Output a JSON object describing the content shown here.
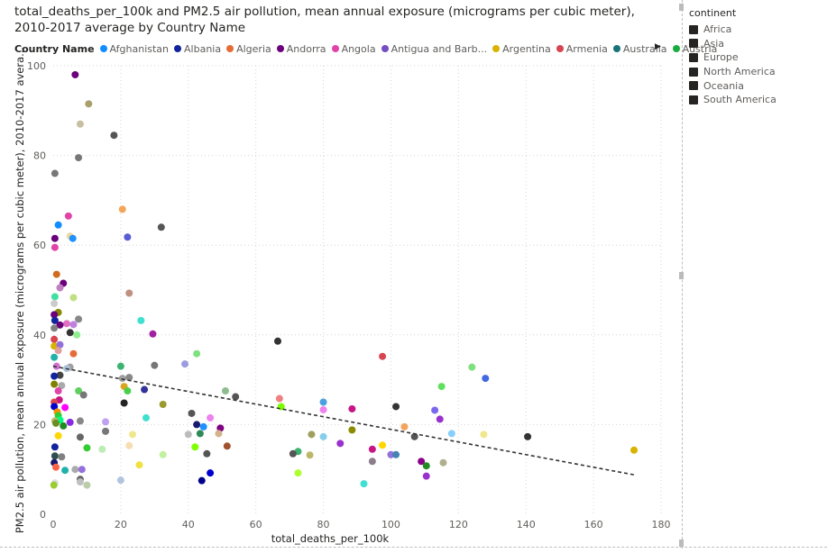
{
  "title": "total_deaths_per_100k and PM2.5 air pollution, mean annual exposure (micrograms per cubic meter), 2010-2017 average by Country Name",
  "legend": {
    "label": "Country Name",
    "items": [
      {
        "name": "Afghanistan",
        "color": "#118dff"
      },
      {
        "name": "Albania",
        "color": "#12239e"
      },
      {
        "name": "Algeria",
        "color": "#e66c37"
      },
      {
        "name": "Andorra",
        "color": "#6b007b"
      },
      {
        "name": "Angola",
        "color": "#e044a7"
      },
      {
        "name": "Antigua and Barb...",
        "color": "#744ec2"
      },
      {
        "name": "Argentina",
        "color": "#d9b300"
      },
      {
        "name": "Armenia",
        "color": "#d64550"
      },
      {
        "name": "Australia",
        "color": "#197278"
      },
      {
        "name": "Austria",
        "color": "#1aab40"
      }
    ],
    "next_icon": "triangle-right-icon"
  },
  "slicer": {
    "title": "continent",
    "items": [
      "Africa",
      "Asia",
      "Europe",
      "North America",
      "Oceania",
      "South America"
    ]
  },
  "chart_data": {
    "type": "scatter",
    "title": "total_deaths_per_100k and PM2.5 air pollution, mean annual exposure (micrograms per cubic meter), 2010-2017 average by Country Name",
    "xlabel": "total_deaths_per_100k",
    "ylabel": "PM2.5 air pollution, mean annual exposure (micrograms per cubic meter), 2010-2017 avera...",
    "xlim": [
      0,
      180
    ],
    "ylim": [
      0,
      100
    ],
    "xticks": [
      0,
      20,
      40,
      60,
      80,
      100,
      120,
      140,
      160,
      180
    ],
    "yticks": [
      0,
      20,
      40,
      60,
      80,
      100
    ],
    "grid": true,
    "trendline": {
      "x": [
        0,
        172
      ],
      "y": [
        33,
        8.8
      ],
      "style": "dashed"
    },
    "points": [
      {
        "x": 6.5,
        "y": 98,
        "c": "#6b007b"
      },
      {
        "x": 10.5,
        "y": 91.5,
        "c": "#a89f6a"
      },
      {
        "x": 8,
        "y": 87,
        "c": "#c8bfa0"
      },
      {
        "x": 18,
        "y": 84.5,
        "c": "#555555"
      },
      {
        "x": 7.5,
        "y": 79.5,
        "c": "#777777"
      },
      {
        "x": 0.5,
        "y": 76,
        "c": "#777777"
      },
      {
        "x": 20.5,
        "y": 68,
        "c": "#f2a65a"
      },
      {
        "x": 4.5,
        "y": 66.5,
        "c": "#e044a7"
      },
      {
        "x": 1.5,
        "y": 64.5,
        "c": "#118dff"
      },
      {
        "x": 32,
        "y": 64,
        "c": "#555555"
      },
      {
        "x": 22,
        "y": 61.8,
        "c": "#5b5bd6"
      },
      {
        "x": 5,
        "y": 62,
        "c": "#e8d9a0"
      },
      {
        "x": 5.8,
        "y": 61.5,
        "c": "#1e90ff"
      },
      {
        "x": 0.5,
        "y": 61.5,
        "c": "#6b007b"
      },
      {
        "x": 0.5,
        "y": 59.5,
        "c": "#e044a7"
      },
      {
        "x": 1,
        "y": 53.5,
        "c": "#d2691e"
      },
      {
        "x": 3,
        "y": 51.5,
        "c": "#6b007b"
      },
      {
        "x": 2,
        "y": 50.5,
        "c": "#c080c0"
      },
      {
        "x": 22.5,
        "y": 49.3,
        "c": "#c09080"
      },
      {
        "x": 0.5,
        "y": 48.5,
        "c": "#40e0a0"
      },
      {
        "x": 6,
        "y": 48.3,
        "c": "#c0e080"
      },
      {
        "x": 0.3,
        "y": 47,
        "c": "#cccccc"
      },
      {
        "x": 1.5,
        "y": 45,
        "c": "#888800"
      },
      {
        "x": 0.3,
        "y": 44.5,
        "c": "#6b007b"
      },
      {
        "x": 7.5,
        "y": 43.5,
        "c": "#888888"
      },
      {
        "x": 0.5,
        "y": 43.2,
        "c": "#12239e"
      },
      {
        "x": 26,
        "y": 43.2,
        "c": "#40e0d0"
      },
      {
        "x": 4,
        "y": 42.5,
        "c": "#e070c0"
      },
      {
        "x": 6,
        "y": 42.3,
        "c": "#c080e0"
      },
      {
        "x": 2,
        "y": 42.2,
        "c": "#6b007b"
      },
      {
        "x": 0.3,
        "y": 41.5,
        "c": "#808080"
      },
      {
        "x": 5,
        "y": 40.5,
        "c": "#333333"
      },
      {
        "x": 29.5,
        "y": 40.2,
        "c": "#a020a0"
      },
      {
        "x": 7,
        "y": 40,
        "c": "#90ee90"
      },
      {
        "x": 66.5,
        "y": 38.6,
        "c": "#333333"
      },
      {
        "x": 0.3,
        "y": 39,
        "c": "#d64550"
      },
      {
        "x": 0.3,
        "y": 37.5,
        "c": "#d9b300"
      },
      {
        "x": 2,
        "y": 37.8,
        "c": "#9370db"
      },
      {
        "x": 1.5,
        "y": 36.5,
        "c": "#e0a0a0"
      },
      {
        "x": 6,
        "y": 35.8,
        "c": "#e66c37"
      },
      {
        "x": 42.5,
        "y": 35.8,
        "c": "#7ee07e"
      },
      {
        "x": 97.5,
        "y": 35.2,
        "c": "#d64550"
      },
      {
        "x": 0.3,
        "y": 35,
        "c": "#20b2aa"
      },
      {
        "x": 39,
        "y": 33.5,
        "c": "#9b9be0"
      },
      {
        "x": 20,
        "y": 33,
        "c": "#3cb371"
      },
      {
        "x": 30,
        "y": 33.2,
        "c": "#777777"
      },
      {
        "x": 1,
        "y": 33,
        "c": "#d070d0"
      },
      {
        "x": 5,
        "y": 32.8,
        "c": "#a0a0a0"
      },
      {
        "x": 124,
        "y": 32.8,
        "c": "#7ee07e"
      },
      {
        "x": 4,
        "y": 32.5,
        "c": "#b0c4de"
      },
      {
        "x": 2,
        "y": 31,
        "c": "#444444"
      },
      {
        "x": 22.5,
        "y": 30.5,
        "c": "#888888"
      },
      {
        "x": 20.5,
        "y": 30.3,
        "c": "#a0a0a0"
      },
      {
        "x": 0.3,
        "y": 30.8,
        "c": "#12239e"
      },
      {
        "x": 128,
        "y": 30.3,
        "c": "#4169e1"
      },
      {
        "x": 115,
        "y": 28.5,
        "c": "#5fe05f"
      },
      {
        "x": 0.3,
        "y": 29,
        "c": "#808000"
      },
      {
        "x": 2.5,
        "y": 28.7,
        "c": "#aaaaaa"
      },
      {
        "x": 21,
        "y": 28.5,
        "c": "#daa520"
      },
      {
        "x": 27,
        "y": 27.8,
        "c": "#333399"
      },
      {
        "x": 1.5,
        "y": 27.5,
        "c": "#e044a7"
      },
      {
        "x": 7.5,
        "y": 27.5,
        "c": "#5fcf5f"
      },
      {
        "x": 51,
        "y": 27.5,
        "c": "#8fbc8f"
      },
      {
        "x": 22,
        "y": 27.5,
        "c": "#4ad04a"
      },
      {
        "x": 9,
        "y": 26.6,
        "c": "#777777"
      },
      {
        "x": 54,
        "y": 26.2,
        "c": "#555555"
      },
      {
        "x": 67,
        "y": 25.8,
        "c": "#f08080"
      },
      {
        "x": 80,
        "y": 25,
        "c": "#4aa0e0"
      },
      {
        "x": 1.8,
        "y": 25.5,
        "c": "#c71585"
      },
      {
        "x": 0.3,
        "y": 25,
        "c": "#d64550"
      },
      {
        "x": 21,
        "y": 24.8,
        "c": "#222222"
      },
      {
        "x": 32.5,
        "y": 24.5,
        "c": "#9a9a30"
      },
      {
        "x": 0.3,
        "y": 24,
        "c": "#0000cd"
      },
      {
        "x": 3.5,
        "y": 23.8,
        "c": "#ff00ff"
      },
      {
        "x": 67.5,
        "y": 24,
        "c": "#7cfc00"
      },
      {
        "x": 101.5,
        "y": 24,
        "c": "#333333"
      },
      {
        "x": 88.5,
        "y": 23.5,
        "c": "#c71585"
      },
      {
        "x": 113,
        "y": 23.2,
        "c": "#7b68ee"
      },
      {
        "x": 80,
        "y": 23.3,
        "c": "#ee82ee"
      },
      {
        "x": 1.2,
        "y": 22.8,
        "c": "#ff8c00"
      },
      {
        "x": 1.5,
        "y": 22,
        "c": "#32cd32"
      },
      {
        "x": 41,
        "y": 22.5,
        "c": "#555555"
      },
      {
        "x": 46.5,
        "y": 21.5,
        "c": "#ee82ee"
      },
      {
        "x": 27.5,
        "y": 21.5,
        "c": "#40e0d0"
      },
      {
        "x": 114.5,
        "y": 21.2,
        "c": "#9932cc"
      },
      {
        "x": 2,
        "y": 21,
        "c": "#00ff7f"
      },
      {
        "x": 0.5,
        "y": 20.8,
        "c": "#bdb76b"
      },
      {
        "x": 8,
        "y": 20.8,
        "c": "#888888"
      },
      {
        "x": 15.5,
        "y": 20.6,
        "c": "#c0a0f0"
      },
      {
        "x": 5,
        "y": 20.5,
        "c": "#8a2be2"
      },
      {
        "x": 0.8,
        "y": 20.3,
        "c": "#6b8e23"
      },
      {
        "x": 3,
        "y": 19.7,
        "c": "#228b22"
      },
      {
        "x": 42.5,
        "y": 20,
        "c": "#191970"
      },
      {
        "x": 44.5,
        "y": 19.5,
        "c": "#1e90ff"
      },
      {
        "x": 49.5,
        "y": 19.2,
        "c": "#800080"
      },
      {
        "x": 104,
        "y": 19.5,
        "c": "#f4a460"
      },
      {
        "x": 88.5,
        "y": 18.8,
        "c": "#8b8b00"
      },
      {
        "x": 15.5,
        "y": 18.5,
        "c": "#777777"
      },
      {
        "x": 23.5,
        "y": 17.8,
        "c": "#f0e68c"
      },
      {
        "x": 40,
        "y": 17.8,
        "c": "#bbbbbb"
      },
      {
        "x": 43.5,
        "y": 18,
        "c": "#2e8b57"
      },
      {
        "x": 49,
        "y": 18,
        "c": "#d2b48c"
      },
      {
        "x": 76.5,
        "y": 17.8,
        "c": "#9f9f5f"
      },
      {
        "x": 80,
        "y": 17.3,
        "c": "#87ceeb"
      },
      {
        "x": 118,
        "y": 18,
        "c": "#87cefa"
      },
      {
        "x": 127.5,
        "y": 17.8,
        "c": "#f0e68c"
      },
      {
        "x": 140.5,
        "y": 17.3,
        "c": "#333333"
      },
      {
        "x": 107,
        "y": 17.3,
        "c": "#555555"
      },
      {
        "x": 1.5,
        "y": 17.5,
        "c": "#ffd700"
      },
      {
        "x": 8,
        "y": 17.2,
        "c": "#666666"
      },
      {
        "x": 85,
        "y": 15.8,
        "c": "#9932cc"
      },
      {
        "x": 22.5,
        "y": 15.3,
        "c": "#f5deb3"
      },
      {
        "x": 42,
        "y": 15,
        "c": "#7fff00"
      },
      {
        "x": 51.5,
        "y": 15.2,
        "c": "#a0522d"
      },
      {
        "x": 97.5,
        "y": 15.4,
        "c": "#ffd700"
      },
      {
        "x": 10,
        "y": 14.8,
        "c": "#32cd32"
      },
      {
        "x": 14.5,
        "y": 14.5,
        "c": "#bdecb6"
      },
      {
        "x": 0.5,
        "y": 15,
        "c": "#12239e"
      },
      {
        "x": 94.5,
        "y": 14.5,
        "c": "#c71585"
      },
      {
        "x": 172,
        "y": 14.3,
        "c": "#d9b300"
      },
      {
        "x": 72.5,
        "y": 14,
        "c": "#3cb371"
      },
      {
        "x": 71,
        "y": 13.5,
        "c": "#555555"
      },
      {
        "x": 76,
        "y": 13.2,
        "c": "#bdb76b"
      },
      {
        "x": 100,
        "y": 13.3,
        "c": "#9370db"
      },
      {
        "x": 101.5,
        "y": 13.3,
        "c": "#4682b4"
      },
      {
        "x": 32.5,
        "y": 13.3,
        "c": "#c0f0a0"
      },
      {
        "x": 45.5,
        "y": 13.5,
        "c": "#555555"
      },
      {
        "x": 0.5,
        "y": 13,
        "c": "#2f4f4f"
      },
      {
        "x": 2.5,
        "y": 12.8,
        "c": "#808080"
      },
      {
        "x": 94.5,
        "y": 11.8,
        "c": "#8b7d8b"
      },
      {
        "x": 109,
        "y": 11.8,
        "c": "#8b008b"
      },
      {
        "x": 115.5,
        "y": 11.5,
        "c": "#b0b090"
      },
      {
        "x": 110.5,
        "y": 10.8,
        "c": "#228b22"
      },
      {
        "x": 0.3,
        "y": 11.5,
        "c": "#191970"
      },
      {
        "x": 25.5,
        "y": 11,
        "c": "#f0e040"
      },
      {
        "x": 3.5,
        "y": 9.8,
        "c": "#20b2aa"
      },
      {
        "x": 6.5,
        "y": 10,
        "c": "#aaaaaa"
      },
      {
        "x": 8.5,
        "y": 10,
        "c": "#9370db"
      },
      {
        "x": 0.8,
        "y": 10.5,
        "c": "#ff6347"
      },
      {
        "x": 72.5,
        "y": 9.2,
        "c": "#adff2f"
      },
      {
        "x": 46.5,
        "y": 9.2,
        "c": "#0000cd"
      },
      {
        "x": 110.5,
        "y": 8.5,
        "c": "#9932cc"
      },
      {
        "x": 8,
        "y": 7.8,
        "c": "#666666"
      },
      {
        "x": 20,
        "y": 7.6,
        "c": "#b0c4de"
      },
      {
        "x": 44,
        "y": 7.5,
        "c": "#00008b"
      },
      {
        "x": 8,
        "y": 7.2,
        "c": "#c0c0c0"
      },
      {
        "x": 10,
        "y": 6.5,
        "c": "#bca"
      },
      {
        "x": 92,
        "y": 6.8,
        "c": "#40e0d0"
      },
      {
        "x": 0.5,
        "y": 7,
        "c": "#ddd"
      },
      {
        "x": 0.2,
        "y": 6.5,
        "c": "#9acd32"
      }
    ]
  }
}
